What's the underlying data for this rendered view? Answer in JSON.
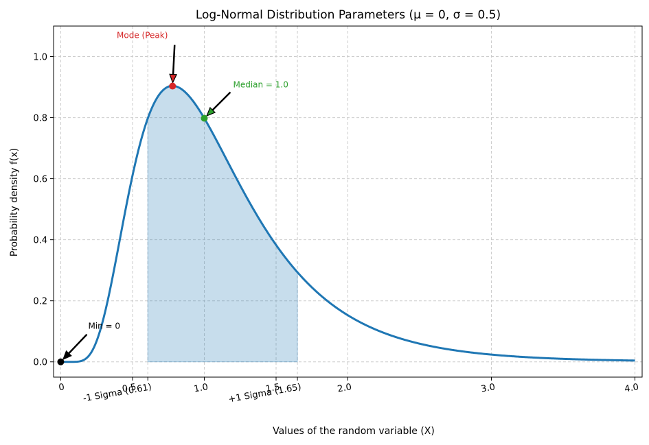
{
  "chart_data": {
    "type": "line",
    "title": "Log-Normal Distribution Parameters (μ = 0, σ = 0.5)",
    "xlabel": "Values of the random variable (X)",
    "ylabel": "Probability density f(x)",
    "mu": 0,
    "sigma": 0.5,
    "xlim": [
      -0.05,
      4.05
    ],
    "ylim": [
      -0.05,
      1.1
    ],
    "grid": true,
    "x_ticks": [
      {
        "value": 0,
        "label": "0"
      },
      {
        "value": 0.5,
        "label": "0.5"
      },
      {
        "value": 0.6065,
        "label": "-1 Sigma (0.61)"
      },
      {
        "value": 1.0,
        "label": "1.0"
      },
      {
        "value": 1.5,
        "label": "1.5"
      },
      {
        "value": 1.6487,
        "label": "+1 Sigma (1.65)"
      },
      {
        "value": 2.0,
        "label": "2.0"
      },
      {
        "value": 3.0,
        "label": "3.0"
      },
      {
        "value": 4.0,
        "label": "4.0"
      }
    ],
    "y_ticks": [
      {
        "value": 0.0,
        "label": "0.0"
      },
      {
        "value": 0.2,
        "label": "0.2"
      },
      {
        "value": 0.4,
        "label": "0.4"
      },
      {
        "value": 0.6,
        "label": "0.6"
      },
      {
        "value": 0.8,
        "label": "0.8"
      },
      {
        "value": 1.0,
        "label": "1.0"
      }
    ],
    "curve": {
      "x_min": 0,
      "x_max": 4.0,
      "color": "#1f77b4"
    },
    "shaded_region": {
      "x_from": 0.6065,
      "x_to": 1.6487,
      "color": "#1f77b4",
      "opacity": 0.25
    },
    "points": [
      {
        "name": "min",
        "x": 0,
        "y": 0,
        "color": "#000000",
        "label": "Min = 0"
      },
      {
        "name": "mode",
        "x": 0.7788,
        "y": 0.9034,
        "color": "#d62728",
        "label": "Mode (Peak)"
      },
      {
        "name": "median",
        "x": 1.0,
        "y": 0.7979,
        "color": "#2ca02c",
        "label": "Median = 1.0"
      }
    ]
  }
}
